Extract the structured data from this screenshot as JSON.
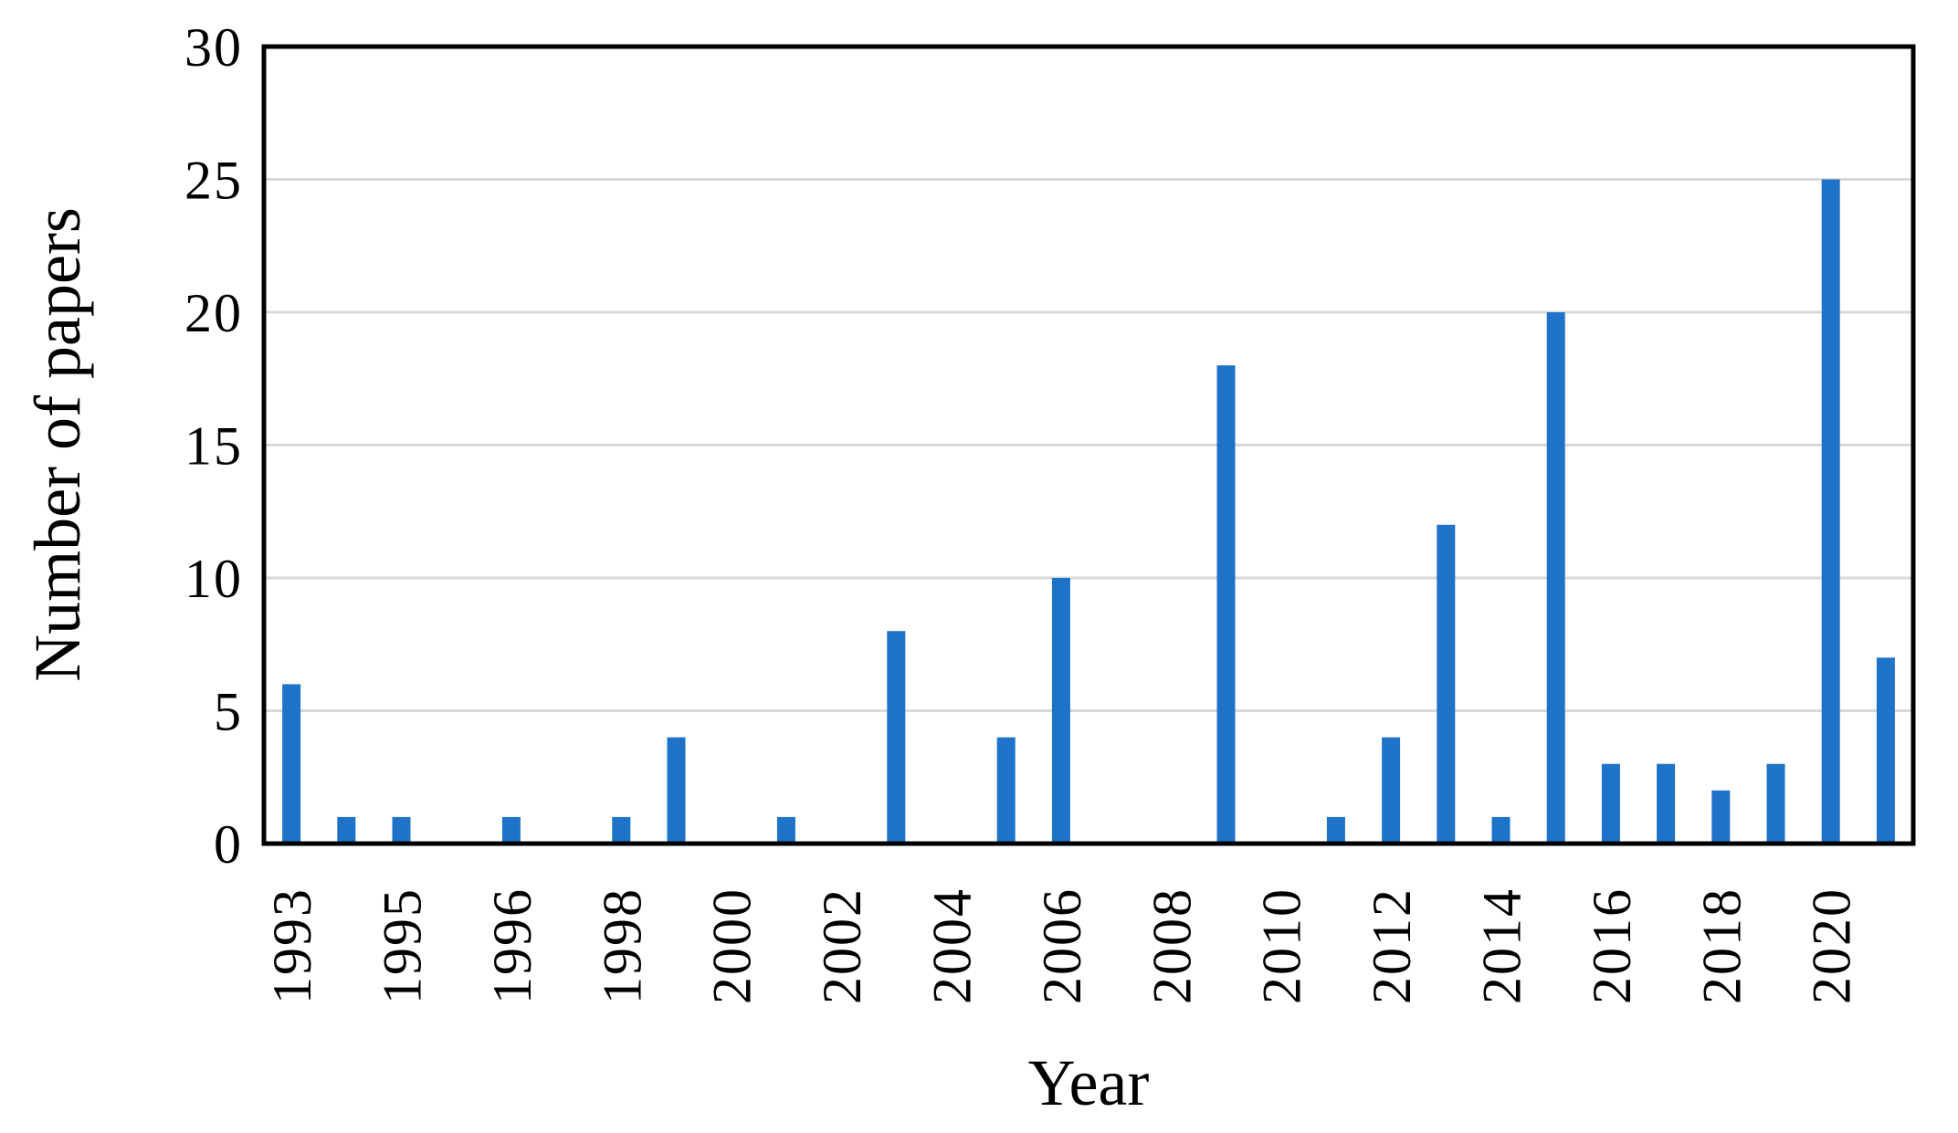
{
  "chart_data": {
    "type": "bar",
    "title": "",
    "xlabel": "Year",
    "ylabel": "Number of papers",
    "ylim": [
      0,
      30
    ],
    "yticks": [
      0,
      5,
      10,
      15,
      20,
      25,
      30
    ],
    "grid": "horizontal",
    "legend": "none",
    "bar_color": "#1E73C8",
    "gridline_color": "#D9D9D9",
    "axis_color": "#000000",
    "x_tick_rotation_deg": -90,
    "slots": [
      {
        "tick": "1993",
        "value": 6
      },
      {
        "tick": "",
        "value": 1
      },
      {
        "tick": "1995",
        "value": 1
      },
      {
        "tick": "",
        "value": 0
      },
      {
        "tick": "1996",
        "value": 1
      },
      {
        "tick": "",
        "value": 0
      },
      {
        "tick": "1998",
        "value": 1
      },
      {
        "tick": "",
        "value": 4
      },
      {
        "tick": "2000",
        "value": 0
      },
      {
        "tick": "",
        "value": 1
      },
      {
        "tick": "2002",
        "value": 0
      },
      {
        "tick": "",
        "value": 8
      },
      {
        "tick": "2004",
        "value": 0
      },
      {
        "tick": "",
        "value": 4
      },
      {
        "tick": "2006",
        "value": 10
      },
      {
        "tick": "",
        "value": 0
      },
      {
        "tick": "2008",
        "value": 0
      },
      {
        "tick": "",
        "value": 18
      },
      {
        "tick": "2010",
        "value": 0
      },
      {
        "tick": "",
        "value": 1
      },
      {
        "tick": "2012",
        "value": 4
      },
      {
        "tick": "",
        "value": 12
      },
      {
        "tick": "2014",
        "value": 1
      },
      {
        "tick": "",
        "value": 20
      },
      {
        "tick": "2016",
        "value": 3
      },
      {
        "tick": "",
        "value": 3
      },
      {
        "tick": "2018",
        "value": 2
      },
      {
        "tick": "",
        "value": 3
      },
      {
        "tick": "2020",
        "value": 25
      },
      {
        "tick": "",
        "value": 7
      }
    ]
  }
}
